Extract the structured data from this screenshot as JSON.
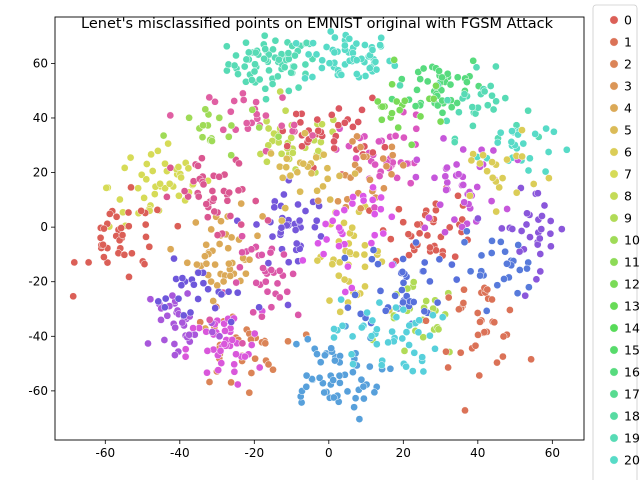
{
  "chart_data": {
    "type": "scatter",
    "title": "Lenet's misclassified points on EMNIST original with FGSM Attack",
    "xlabel": "",
    "ylabel": "",
    "xlim": [
      -73.5,
      68.5
    ],
    "ylim": [
      -78,
      77
    ],
    "xticks": [
      -60,
      -40,
      -20,
      0,
      20,
      40,
      60
    ],
    "yticks": [
      -60,
      -40,
      -20,
      0,
      20,
      40,
      60
    ],
    "grid": false,
    "legend_placement": "right-outside",
    "legend": [
      {
        "label": "0",
        "color": "#db5f57"
      },
      {
        "label": "1",
        "color": "#db7257"
      },
      {
        "label": "2",
        "color": "#db8457"
      },
      {
        "label": "3",
        "color": "#db9657"
      },
      {
        "label": "4",
        "color": "#dba957"
      },
      {
        "label": "5",
        "color": "#dbbb57"
      },
      {
        "label": "6",
        "color": "#dbcd57"
      },
      {
        "label": "7",
        "color": "#d6db57"
      },
      {
        "label": "8",
        "color": "#c4db57"
      },
      {
        "label": "9",
        "color": "#b1db57"
      },
      {
        "label": "10",
        "color": "#9fdb57"
      },
      {
        "label": "11",
        "color": "#8ddb57"
      },
      {
        "label": "12",
        "color": "#7adb57"
      },
      {
        "label": "13",
        "color": "#68db57"
      },
      {
        "label": "14",
        "color": "#57db59"
      },
      {
        "label": "15",
        "color": "#57db6b"
      },
      {
        "label": "16",
        "color": "#57db7e"
      },
      {
        "label": "17",
        "color": "#57db90"
      },
      {
        "label": "18",
        "color": "#57dba2"
      },
      {
        "label": "19",
        "color": "#57dbb5"
      },
      {
        "label": "20",
        "color": "#57dbc7"
      }
    ],
    "clusters": [
      {
        "color": "#57dbb5",
        "cx": -15,
        "cy": 60,
        "sx": 6,
        "sy": 5,
        "n": 70
      },
      {
        "color": "#57dbc7",
        "cx": 5,
        "cy": 62,
        "sx": 6,
        "sy": 5,
        "n": 60
      },
      {
        "color": "#57db7e",
        "cx": 30,
        "cy": 52,
        "sx": 6,
        "sy": 6,
        "n": 45
      },
      {
        "color": "#57dbb5",
        "cx": 40,
        "cy": 45,
        "sx": 6,
        "sy": 6,
        "n": 30
      },
      {
        "color": "#57dbc7",
        "cx": 50,
        "cy": 30,
        "sx": 5,
        "sy": 6,
        "n": 25
      },
      {
        "color": "#dba957",
        "cx": -28,
        "cy": -10,
        "sx": 5,
        "sy": 8,
        "n": 45
      },
      {
        "color": "#dbcd57",
        "cx": 5,
        "cy": -10,
        "sx": 5,
        "sy": 8,
        "n": 40
      },
      {
        "color": "#d6db57",
        "cx": -45,
        "cy": 15,
        "sx": 7,
        "sy": 8,
        "n": 45
      },
      {
        "color": "#c4db57",
        "cx": -10,
        "cy": 30,
        "sx": 7,
        "sy": 6,
        "n": 35
      },
      {
        "color": "#b1db57",
        "cx": 25,
        "cy": -35,
        "sx": 5,
        "sy": 7,
        "n": 25
      },
      {
        "color": "#db5f57",
        "cx": -55,
        "cy": -5,
        "sx": 6,
        "sy": 8,
        "n": 40
      },
      {
        "color": "#db5f57",
        "cx": 28,
        "cy": 0,
        "sx": 6,
        "sy": 6,
        "n": 40
      },
      {
        "color": "#db7257",
        "cx": 40,
        "cy": -35,
        "sx": 6,
        "sy": 8,
        "n": 35
      },
      {
        "color": "#db8457",
        "cx": -25,
        "cy": -45,
        "sx": 6,
        "sy": 7,
        "n": 35
      },
      {
        "color": "#d957db",
        "cx": -28,
        "cy": -45,
        "sx": 5,
        "sy": 7,
        "n": 40
      },
      {
        "color": "#a857db",
        "cx": -40,
        "cy": -35,
        "sx": 5,
        "sy": 8,
        "n": 35
      },
      {
        "color": "#7557db",
        "cx": -10,
        "cy": 0,
        "sx": 5,
        "sy": 10,
        "n": 40
      },
      {
        "color": "#5770db",
        "cx": 20,
        "cy": -20,
        "sx": 6,
        "sy": 8,
        "n": 40
      },
      {
        "color": "#57a0db",
        "cx": 0,
        "cy": -55,
        "sx": 7,
        "sy": 8,
        "n": 55
      },
      {
        "color": "#57d0db",
        "cx": 15,
        "cy": -40,
        "sx": 7,
        "sy": 7,
        "n": 45
      },
      {
        "color": "#db57c1",
        "cx": 15,
        "cy": 25,
        "sx": 6,
        "sy": 8,
        "n": 40
      },
      {
        "color": "#db5791",
        "cx": -30,
        "cy": 10,
        "sx": 6,
        "sy": 8,
        "n": 40
      },
      {
        "color": "#db5760",
        "cx": 0,
        "cy": 35,
        "sx": 7,
        "sy": 6,
        "n": 35
      },
      {
        "color": "#c657db",
        "cx": 35,
        "cy": 15,
        "sx": 6,
        "sy": 8,
        "n": 40
      },
      {
        "color": "#8a57db",
        "cx": 55,
        "cy": 0,
        "sx": 5,
        "sy": 8,
        "n": 30
      },
      {
        "color": "#577adb",
        "cx": 45,
        "cy": -15,
        "sx": 5,
        "sy": 6,
        "n": 25
      },
      {
        "color": "#db57a8",
        "cx": -15,
        "cy": -20,
        "sx": 6,
        "sy": 8,
        "n": 35
      },
      {
        "color": "#e05fa3",
        "cx": -20,
        "cy": 40,
        "sx": 6,
        "sy": 6,
        "n": 25
      },
      {
        "color": "#db9657",
        "cx": 10,
        "cy": 20,
        "sx": 6,
        "sy": 6,
        "n": 25
      },
      {
        "color": "#dbbb57",
        "cx": -5,
        "cy": 20,
        "sx": 6,
        "sy": 6,
        "n": 25
      },
      {
        "color": "#9fdb57",
        "cx": -30,
        "cy": 35,
        "sx": 6,
        "sy": 6,
        "n": 20
      },
      {
        "color": "#db57e8",
        "cx": 5,
        "cy": 0,
        "sx": 6,
        "sy": 10,
        "n": 30
      },
      {
        "color": "#6e57db",
        "cx": -35,
        "cy": -25,
        "sx": 6,
        "sy": 6,
        "n": 25
      },
      {
        "color": "#dbcd57",
        "cx": 45,
        "cy": 20,
        "sx": 6,
        "sy": 6,
        "n": 20
      },
      {
        "color": "#7adb57",
        "cx": 20,
        "cy": 45,
        "sx": 6,
        "sy": 6,
        "n": 20
      }
    ]
  }
}
